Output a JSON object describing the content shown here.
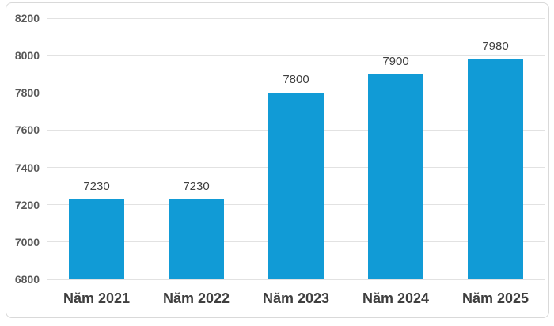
{
  "chart_data": {
    "type": "bar",
    "title": "",
    "xlabel": "",
    "ylabel": "",
    "categories": [
      "Năm 2021",
      "Năm 2022",
      "Năm 2023",
      "Năm 2024",
      "Năm 2025"
    ],
    "values": [
      7230,
      7230,
      7800,
      7900,
      7980
    ],
    "data_labels": [
      "7230",
      "7230",
      "7800",
      "7900",
      "7980"
    ],
    "y_ticks": [
      8200,
      8000,
      7800,
      7600,
      7400,
      7200,
      7000,
      6800
    ],
    "ylim": [
      6800,
      8200
    ],
    "grid": true,
    "legend": false,
    "colors": {
      "bar": "#119BD6",
      "gridline": "#e2e2e2",
      "panel_border": "#d9d9d9",
      "y_tick_label": "#595959",
      "value_label": "#3f3f3f",
      "category_label": "#3f3f3f",
      "background": "#ffffff"
    }
  }
}
